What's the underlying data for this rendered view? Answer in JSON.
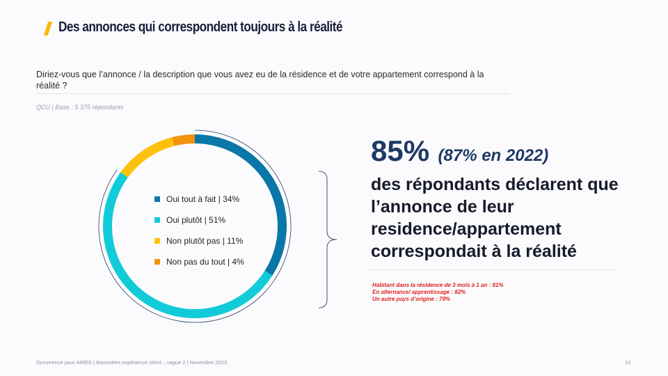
{
  "header": {
    "title": "Des annonces qui correspondent toujours à la réalité"
  },
  "question": {
    "text": "Diriez-vous que l’annonce / la description que vous avez eu de la résidence et de votre appartement correspond à la réalité ?",
    "base": "QCU | Base : 5 375 répondants"
  },
  "chart_data": {
    "type": "pie",
    "subtype": "donut",
    "categories": [
      "Oui tout à fait",
      "Oui plutôt",
      "Non plutôt pas",
      "Non pas du tout"
    ],
    "values": [
      34,
      51,
      11,
      4
    ],
    "unit": "%",
    "colors": [
      "#0a77a8",
      "#12cbd8",
      "#fcc10c",
      "#f3920e"
    ],
    "legend_labels": [
      "Oui tout à fait | 34%",
      "Oui plutôt | 51%",
      "Non plutôt pas | 11%",
      "Non pas du tout | 4%"
    ],
    "legend_position": "inside"
  },
  "highlight": {
    "value": "85%",
    "previous": "(87% en 2022)",
    "statement": "des répondants déclarent que l’annonce de leur residence/appartement correspondait à la réalité",
    "notes": [
      "Habitant dans la résidence de 3 mois à 1 an : 81%",
      "En alternance/ apprentissage : 82%",
      "Un autre pays d’origine : 79%"
    ],
    "note_color": "#e0201b",
    "accent_color": "#1e3a63"
  },
  "footer": {
    "text": "Occurrence pour AIRES | Baromètre expérience client – vague 2 | Novembre 2023",
    "page": "13"
  }
}
